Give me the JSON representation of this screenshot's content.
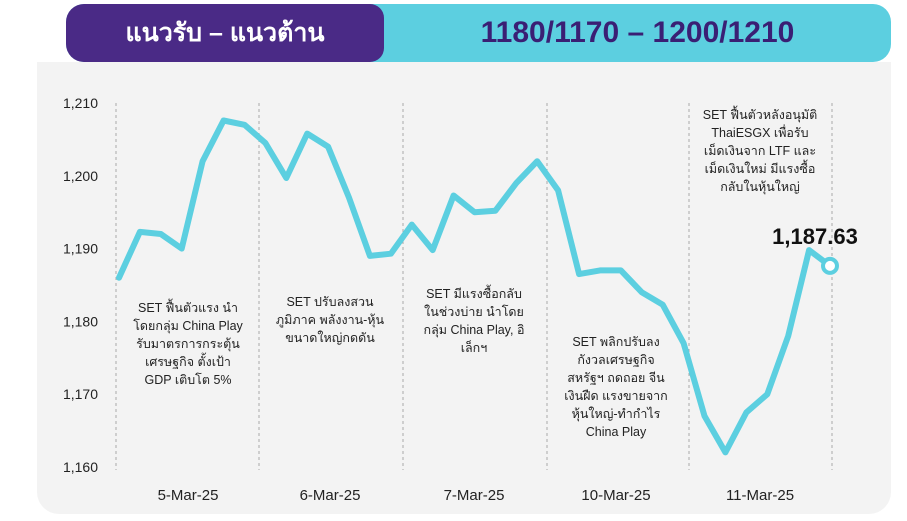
{
  "header": {
    "title": "แนวรับ – แนวต้าน",
    "levels": "1180/1170 – 1200/1210"
  },
  "colors": {
    "header_purple": "#4a2a86",
    "header_cyan": "#5ccfe0",
    "line": "#5ccfe0",
    "panel": "#f3f3f3",
    "divider": "#aaaaaa"
  },
  "chart_data": {
    "type": "line",
    "title": "",
    "xlabel": "",
    "ylabel": "",
    "ylim": [
      1160,
      1210
    ],
    "yticks": [
      1160,
      1170,
      1180,
      1190,
      1200,
      1210
    ],
    "ytick_labels": [
      "1,160",
      "1,170",
      "1,180",
      "1,190",
      "1,200",
      "1,210"
    ],
    "grid": false,
    "day_labels": [
      "5-Mar-25",
      "6-Mar-25",
      "7-Mar-25",
      "10-Mar-25",
      "11-Mar-25"
    ],
    "series": [
      {
        "values": [
          1186.0,
          1192.3,
          1192.0,
          1190.0,
          1202.0,
          1207.6,
          1207.0,
          1204.5,
          1199.7,
          1205.8,
          1204.0,
          1197.0,
          1189.0,
          1189.3,
          1193.3,
          1189.8,
          1197.3,
          1195.0,
          1195.2,
          1199.0,
          1202.0,
          1198.0,
          1186.5,
          1187.0,
          1187.0,
          1184.0,
          1182.3,
          1177.0,
          1167.0,
          1162.0,
          1167.5,
          1170.0,
          1178.0,
          1189.8,
          1187.63
        ]
      }
    ],
    "last_value_label": "1,187.63",
    "annotations": [
      {
        "day": 0,
        "lines": [
          "SET ฟื้นตัวแรง นำ",
          "โดยกลุ่ม China Play",
          "รับมาตรการกระตุ้น",
          "เศรษฐกิจ ตั้งเป้า",
          "GDP เติบโต 5%"
        ]
      },
      {
        "day": 1,
        "lines": [
          "SET ปรับลงสวน",
          "ภูมิภาค พลังงาน-หุ้น",
          "ขนาดใหญ่กดดัน"
        ]
      },
      {
        "day": 2,
        "lines": [
          "SET มีแรงซื้อกลับ",
          "ในช่วงบ่าย นำโดย",
          "กลุ่ม China Play, อิ",
          "เล็กฯ"
        ]
      },
      {
        "day": 3,
        "lines": [
          "SET พลิกปรับลง",
          "กังวลเศรษฐกิจ",
          "สหรัฐฯ ถดถอย จีน",
          "เงินฝืด แรงขายจาก",
          "หุ้นใหญ่-ทำกำไร",
          "China Play"
        ]
      },
      {
        "day": 4,
        "lines": [
          "SET ฟื้นตัวหลังอนุมัติ",
          "ThaiESGX เพื่อรับ",
          "เม็ดเงินจาก LTF และ",
          "เม็ดเงินใหม่ มีแรงซื้อ",
          "กลับในหุ้นใหญ่"
        ]
      }
    ]
  }
}
